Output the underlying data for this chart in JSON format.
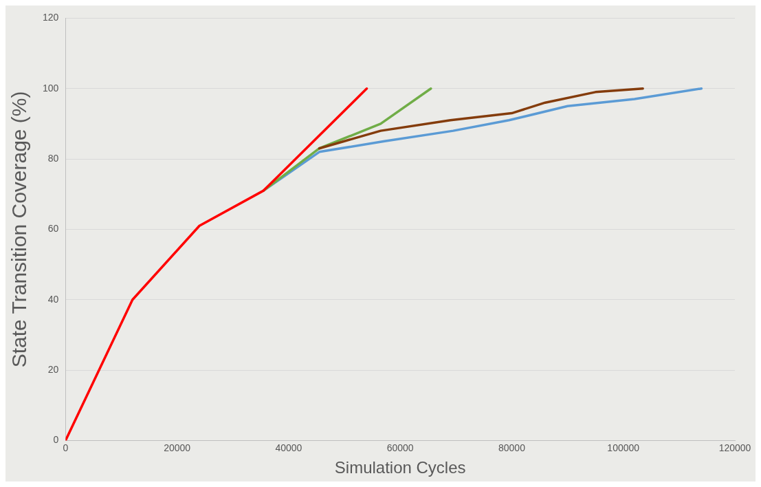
{
  "chart_data": {
    "type": "line",
    "xlabel": "Simulation Cycles",
    "ylabel": "State Transition Coverage (%)",
    "xlim": [
      0,
      120000
    ],
    "xticks": [
      0,
      20000,
      40000,
      60000,
      80000,
      100000,
      120000
    ],
    "ylim": [
      0,
      120
    ],
    "yticks": [
      0,
      20,
      40,
      60,
      80,
      100,
      120
    ],
    "grid": "y",
    "marker": "none",
    "line_style": "solid",
    "series": [
      {
        "color": "#ff0000",
        "x": [
          0,
          12000,
          24000,
          35500,
          54000
        ],
        "values": [
          0,
          40,
          61,
          71,
          100
        ]
      },
      {
        "color": "#843c0c",
        "x": [
          45500,
          56500,
          69000,
          80000,
          86000,
          95000,
          103500
        ],
        "values": [
          83,
          88,
          91,
          93,
          96,
          99,
          100
        ]
      },
      {
        "color": "#70ad47",
        "x": [
          35500,
          45500,
          56500,
          65500
        ],
        "values": [
          71,
          83,
          90,
          100
        ]
      },
      {
        "color": "#5b9bd5",
        "x": [
          35500,
          45500,
          57000,
          69500,
          79500,
          90000,
          102000,
          114000
        ],
        "values": [
          71,
          82,
          85,
          88,
          91,
          95,
          97,
          100
        ]
      }
    ]
  }
}
